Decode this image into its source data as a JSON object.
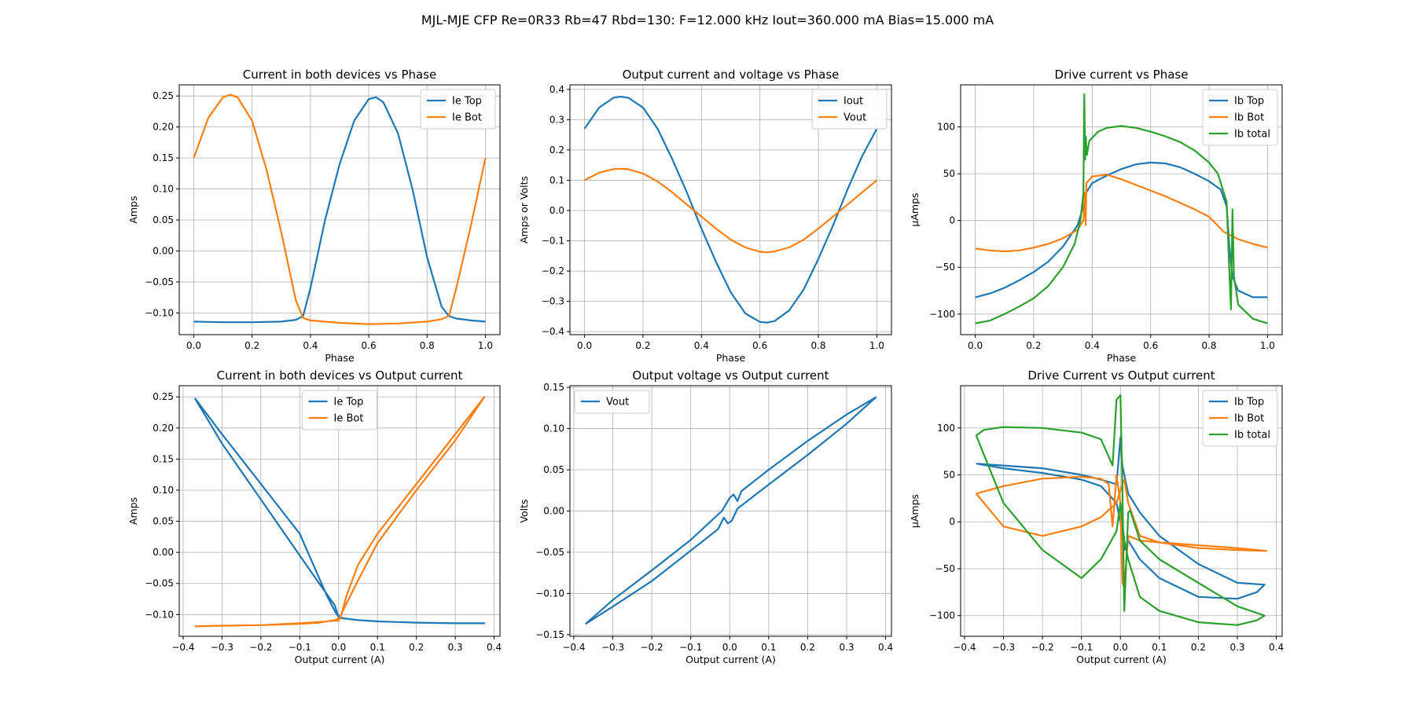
{
  "suptitle": "MJL-MJE CFP Re=0R33 Rb=47 Rbd=130: F=12.000 kHz Iout=360.000 mA Bias=15.000 mA",
  "colors": {
    "blue": "#1f77b4",
    "orange": "#ff7f0e",
    "green": "#2ca02c",
    "grid": "#b0b0b0"
  },
  "chart_data": [
    {
      "id": "ie-vs-phase",
      "type": "line",
      "title": "Current in both devices vs Phase",
      "xlabel": "Phase",
      "ylabel": "Amps",
      "xlim": [
        -0.05,
        1.05
      ],
      "ylim": [
        -0.135,
        0.268
      ],
      "xticks": [
        0,
        0.2,
        0.4,
        0.6,
        0.8,
        1.0
      ],
      "xtick_labels": [
        "0.0",
        "0.2",
        "0.4",
        "0.6",
        "0.8",
        "1.0"
      ],
      "yticks": [
        -0.1,
        -0.05,
        0.0,
        0.05,
        0.1,
        0.15,
        0.2,
        0.25
      ],
      "ytick_labels": [
        "−0.10",
        "−0.05",
        "0.00",
        "0.05",
        "0.10",
        "0.15",
        "0.20",
        "0.25"
      ],
      "grid": true,
      "legend": "top-right",
      "series": [
        {
          "name": "Ie Top",
          "color": "#1f77b4",
          "x": [
            0.0,
            0.1,
            0.2,
            0.3,
            0.35,
            0.375,
            0.4,
            0.45,
            0.5,
            0.55,
            0.6,
            0.625,
            0.65,
            0.7,
            0.75,
            0.8,
            0.85,
            0.875,
            0.9,
            0.95,
            1.0
          ],
          "y": [
            -0.114,
            -0.115,
            -0.115,
            -0.114,
            -0.111,
            -0.105,
            -0.06,
            0.05,
            0.14,
            0.21,
            0.245,
            0.248,
            0.24,
            0.19,
            0.1,
            -0.01,
            -0.09,
            -0.105,
            -0.109,
            -0.112,
            -0.114
          ]
        },
        {
          "name": "Ie Bot",
          "color": "#ff7f0e",
          "x": [
            0.0,
            0.05,
            0.1,
            0.125,
            0.15,
            0.2,
            0.25,
            0.3,
            0.35,
            0.375,
            0.4,
            0.5,
            0.6,
            0.7,
            0.8,
            0.85,
            0.875,
            0.9,
            0.95,
            1.0
          ],
          "y": [
            0.15,
            0.215,
            0.248,
            0.252,
            0.248,
            0.21,
            0.13,
            0.03,
            -0.08,
            -0.108,
            -0.112,
            -0.116,
            -0.118,
            -0.117,
            -0.114,
            -0.11,
            -0.105,
            -0.06,
            0.04,
            0.15
          ]
        }
      ]
    },
    {
      "id": "iout-vout-vs-phase",
      "type": "line",
      "title": "Output current and voltage vs Phase",
      "xlabel": "Phase",
      "ylabel": "Amps or Volts",
      "xlim": [
        -0.05,
        1.05
      ],
      "ylim": [
        -0.41,
        0.415
      ],
      "xticks": [
        0,
        0.2,
        0.4,
        0.6,
        0.8,
        1.0
      ],
      "xtick_labels": [
        "0.0",
        "0.2",
        "0.4",
        "0.6",
        "0.8",
        "1.0"
      ],
      "yticks": [
        -0.4,
        -0.3,
        -0.2,
        -0.1,
        0.0,
        0.1,
        0.2,
        0.3,
        0.4
      ],
      "ytick_labels": [
        "−0.4",
        "−0.3",
        "−0.2",
        "−0.1",
        "0.0",
        "0.1",
        "0.2",
        "0.3",
        "0.4"
      ],
      "grid": true,
      "legend": "top-right",
      "series": [
        {
          "name": "Iout",
          "color": "#1f77b4",
          "x": [
            0.0,
            0.05,
            0.1,
            0.125,
            0.15,
            0.2,
            0.25,
            0.3,
            0.35,
            0.4,
            0.45,
            0.5,
            0.55,
            0.6,
            0.625,
            0.65,
            0.7,
            0.75,
            0.8,
            0.85,
            0.9,
            0.95,
            1.0
          ],
          "y": [
            0.27,
            0.34,
            0.373,
            0.376,
            0.372,
            0.34,
            0.27,
            0.17,
            0.06,
            -0.06,
            -0.17,
            -0.27,
            -0.34,
            -0.368,
            -0.37,
            -0.365,
            -0.33,
            -0.26,
            -0.16,
            -0.05,
            0.07,
            0.18,
            0.27
          ]
        },
        {
          "name": "Vout",
          "color": "#ff7f0e",
          "x": [
            0.0,
            0.05,
            0.1,
            0.125,
            0.15,
            0.2,
            0.25,
            0.3,
            0.35,
            0.4,
            0.45,
            0.5,
            0.55,
            0.6,
            0.625,
            0.65,
            0.7,
            0.75,
            0.8,
            0.85,
            0.9,
            0.95,
            1.0
          ],
          "y": [
            0.1,
            0.125,
            0.137,
            0.138,
            0.136,
            0.122,
            0.096,
            0.06,
            0.02,
            -0.02,
            -0.06,
            -0.096,
            -0.122,
            -0.136,
            -0.138,
            -0.135,
            -0.122,
            -0.096,
            -0.06,
            -0.02,
            0.02,
            0.06,
            0.1
          ]
        }
      ]
    },
    {
      "id": "ib-vs-phase",
      "type": "line",
      "title": "Drive current vs Phase",
      "xlabel": "Phase",
      "ylabel": "µAmps",
      "xlim": [
        -0.05,
        1.05
      ],
      "ylim": [
        -122,
        145
      ],
      "xticks": [
        0,
        0.2,
        0.4,
        0.6,
        0.8,
        1.0
      ],
      "xtick_labels": [
        "0.0",
        "0.2",
        "0.4",
        "0.6",
        "0.8",
        "1.0"
      ],
      "yticks": [
        -100,
        -50,
        0,
        50,
        100
      ],
      "ytick_labels": [
        "−100",
        "−50",
        "0",
        "50",
        "100"
      ],
      "grid": true,
      "legend": "top-right",
      "series": [
        {
          "name": "Ib Top",
          "color": "#1f77b4",
          "x": [
            0.0,
            0.05,
            0.1,
            0.15,
            0.2,
            0.25,
            0.3,
            0.35,
            0.37,
            0.38,
            0.4,
            0.45,
            0.5,
            0.55,
            0.6,
            0.65,
            0.7,
            0.75,
            0.8,
            0.84,
            0.86,
            0.87,
            0.88,
            0.9,
            0.95,
            1.0
          ],
          "y": [
            -82,
            -78,
            -72,
            -64,
            -55,
            -44,
            -28,
            -5,
            15,
            30,
            40,
            48,
            55,
            60,
            62,
            61,
            57,
            50,
            42,
            33,
            15,
            -30,
            -60,
            -75,
            -82,
            -82
          ]
        },
        {
          "name": "Ib Bot",
          "color": "#ff7f0e",
          "x": [
            0.0,
            0.05,
            0.1,
            0.15,
            0.2,
            0.25,
            0.3,
            0.35,
            0.37,
            0.375,
            0.378,
            0.38,
            0.4,
            0.45,
            0.5,
            0.55,
            0.6,
            0.65,
            0.7,
            0.75,
            0.8,
            0.85,
            0.9,
            0.95,
            1.0
          ],
          "y": [
            -30,
            -32,
            -33,
            -32,
            -29,
            -25,
            -19,
            -10,
            0,
            30,
            -5,
            40,
            47,
            49,
            44,
            38,
            32,
            26,
            19,
            12,
            4,
            -12,
            -20,
            -25,
            -29
          ]
        },
        {
          "name": "Ib total",
          "color": "#2ca02c",
          "x": [
            0.0,
            0.05,
            0.1,
            0.15,
            0.2,
            0.25,
            0.3,
            0.34,
            0.36,
            0.37,
            0.373,
            0.376,
            0.378,
            0.382,
            0.39,
            0.42,
            0.45,
            0.5,
            0.55,
            0.6,
            0.65,
            0.7,
            0.75,
            0.8,
            0.83,
            0.86,
            0.87,
            0.875,
            0.88,
            0.885,
            0.9,
            0.95,
            1.0
          ],
          "y": [
            -110,
            -107,
            -100,
            -92,
            -83,
            -70,
            -50,
            -25,
            0,
            30,
            135,
            65,
            90,
            70,
            85,
            95,
            99,
            101,
            99,
            95,
            90,
            84,
            75,
            62,
            50,
            20,
            -60,
            -95,
            12,
            -60,
            -90,
            -105,
            -110
          ]
        }
      ]
    },
    {
      "id": "ie-vs-iout",
      "type": "line",
      "title": "Current in both devices vs Output current",
      "xlabel": "Output current (A)",
      "ylabel": "Amps",
      "xlim": [
        -0.41,
        0.415
      ],
      "ylim": [
        -0.135,
        0.268
      ],
      "xticks": [
        -0.4,
        -0.3,
        -0.2,
        -0.1,
        0.0,
        0.1,
        0.2,
        0.3,
        0.4
      ],
      "xtick_labels": [
        "−0.4",
        "−0.3",
        "−0.2",
        "−0.1",
        "0.0",
        "0.1",
        "0.2",
        "0.3",
        "0.4"
      ],
      "yticks": [
        -0.1,
        -0.05,
        0.0,
        0.05,
        0.1,
        0.15,
        0.2,
        0.25
      ],
      "ytick_labels": [
        "−0.10",
        "−0.05",
        "0.00",
        "0.05",
        "0.10",
        "0.15",
        "0.20",
        "0.25"
      ],
      "grid": true,
      "legend": "top-center",
      "series": [
        {
          "name": "Ie Top",
          "color": "#1f77b4",
          "x": [
            -0.37,
            -0.3,
            -0.2,
            -0.1,
            -0.03,
            -0.005,
            0.01,
            0.05,
            0.1,
            0.2,
            0.3,
            0.375,
            0.3,
            0.2,
            0.1,
            0.05,
            0.01,
            0.0,
            -0.01,
            -0.05,
            -0.1,
            -0.2,
            -0.3,
            -0.37
          ],
          "y": [
            0.248,
            0.19,
            0.11,
            0.03,
            -0.07,
            -0.1,
            -0.106,
            -0.109,
            -0.111,
            -0.113,
            -0.114,
            -0.114,
            -0.114,
            -0.113,
            -0.111,
            -0.109,
            -0.106,
            -0.105,
            -0.085,
            -0.05,
            -0.005,
            0.085,
            0.175,
            0.248
          ]
        },
        {
          "name": "Ie Bot",
          "color": "#ff7f0e",
          "x": [
            -0.37,
            -0.3,
            -0.2,
            -0.1,
            -0.05,
            -0.01,
            0.0,
            0.01,
            0.05,
            0.1,
            0.2,
            0.3,
            0.375,
            0.3,
            0.2,
            0.1,
            0.05,
            0.02,
            0.005,
            -0.01,
            -0.05,
            -0.1,
            -0.2,
            -0.3,
            -0.37
          ],
          "y": [
            -0.119,
            -0.118,
            -0.117,
            -0.114,
            -0.112,
            -0.11,
            -0.11,
            -0.095,
            -0.045,
            0.015,
            0.1,
            0.18,
            0.25,
            0.19,
            0.11,
            0.03,
            -0.02,
            -0.07,
            -0.105,
            -0.109,
            -0.113,
            -0.115,
            -0.117,
            -0.118,
            -0.119
          ]
        }
      ]
    },
    {
      "id": "vout-vs-iout",
      "type": "line",
      "title": "Output voltage vs Output current",
      "xlabel": "Output current (A)",
      "ylabel": "Volts",
      "xlim": [
        -0.41,
        0.415
      ],
      "ylim": [
        -0.152,
        0.152
      ],
      "xticks": [
        -0.4,
        -0.3,
        -0.2,
        -0.1,
        0.0,
        0.1,
        0.2,
        0.3,
        0.4
      ],
      "xtick_labels": [
        "−0.4",
        "−0.3",
        "−0.2",
        "−0.1",
        "0.0",
        "0.1",
        "0.2",
        "0.3",
        "0.4"
      ],
      "yticks": [
        -0.15,
        -0.1,
        -0.05,
        0.0,
        0.05,
        0.1,
        0.15
      ],
      "ytick_labels": [
        "−0.15",
        "−0.10",
        "−0.05",
        "0.00",
        "0.05",
        "0.10",
        "0.15"
      ],
      "grid": true,
      "legend": "top-left",
      "series": [
        {
          "name": "Vout",
          "color": "#1f77b4",
          "x": [
            -0.37,
            -0.3,
            -0.2,
            -0.1,
            -0.03,
            -0.015,
            -0.005,
            0.005,
            0.02,
            0.1,
            0.2,
            0.3,
            0.375,
            0.3,
            0.2,
            0.1,
            0.03,
            0.02,
            0.01,
            0.0,
            -0.02,
            -0.1,
            -0.2,
            -0.3,
            -0.37
          ],
          "y": [
            -0.137,
            -0.116,
            -0.085,
            -0.048,
            -0.022,
            -0.008,
            -0.015,
            -0.012,
            0.003,
            0.032,
            0.068,
            0.106,
            0.138,
            0.117,
            0.085,
            0.05,
            0.024,
            0.012,
            0.02,
            0.016,
            0.0,
            -0.035,
            -0.072,
            -0.108,
            -0.137
          ]
        }
      ]
    },
    {
      "id": "ib-vs-iout",
      "type": "line",
      "title": "Drive Current vs Output current",
      "xlabel": "Output current (A)",
      "ylabel": "µAmps",
      "xlim": [
        -0.41,
        0.415
      ],
      "ylim": [
        -122,
        145
      ],
      "xticks": [
        -0.4,
        -0.3,
        -0.2,
        -0.1,
        0.0,
        0.1,
        0.2,
        0.3,
        0.4
      ],
      "xtick_labels": [
        "−0.4",
        "−0.3",
        "−0.2",
        "−0.1",
        "0.0",
        "0.1",
        "0.2",
        "0.3",
        "0.4"
      ],
      "yticks": [
        -100,
        -50,
        0,
        50,
        100
      ],
      "ytick_labels": [
        "−100",
        "−50",
        "0",
        "50",
        "100"
      ],
      "grid": true,
      "legend": "top-right",
      "series": [
        {
          "name": "Ib Top",
          "color": "#1f77b4",
          "x": [
            -0.37,
            -0.3,
            -0.2,
            -0.1,
            -0.05,
            -0.01,
            0.0,
            0.005,
            0.02,
            0.05,
            0.1,
            0.2,
            0.3,
            0.37,
            0.35,
            0.3,
            0.2,
            0.1,
            0.05,
            0.02,
            0.01,
            0.005,
            -0.01,
            -0.05,
            -0.1,
            -0.2,
            -0.3,
            -0.37
          ],
          "y": [
            62,
            60,
            57,
            50,
            45,
            40,
            90,
            60,
            30,
            10,
            -15,
            -45,
            -65,
            -67,
            -75,
            -82,
            -80,
            -60,
            -40,
            -20,
            -30,
            -10,
            20,
            38,
            45,
            52,
            57,
            62
          ]
        },
        {
          "name": "Ib Bot",
          "color": "#ff7f0e",
          "x": [
            -0.37,
            -0.3,
            -0.2,
            -0.1,
            -0.05,
            -0.03,
            -0.02,
            -0.01,
            0.0,
            0.005,
            0.01,
            0.02,
            0.05,
            0.1,
            0.2,
            0.3,
            0.375,
            0.3,
            0.2,
            0.1,
            0.05,
            0.02,
            0.01,
            0.005,
            -0.01,
            -0.05,
            -0.1,
            -0.2,
            -0.3,
            -0.37
          ],
          "y": [
            30,
            38,
            46,
            48,
            46,
            40,
            -5,
            50,
            20,
            -65,
            -70,
            -15,
            -20,
            -22,
            -25,
            -28,
            -31,
            -30,
            -28,
            -22,
            -15,
            20,
            45,
            40,
            20,
            5,
            -5,
            -15,
            -5,
            30
          ]
        },
        {
          "name": "Ib total",
          "color": "#2ca02c",
          "x": [
            -0.37,
            -0.35,
            -0.3,
            -0.2,
            -0.1,
            -0.05,
            -0.02,
            -0.01,
            0.0,
            0.005,
            0.01,
            0.02,
            0.025,
            0.05,
            0.1,
            0.2,
            0.3,
            0.37,
            0.35,
            0.3,
            0.2,
            0.1,
            0.05,
            0.02,
            0.01,
            0.0,
            -0.01,
            -0.05,
            -0.1,
            -0.2,
            -0.3,
            -0.37
          ],
          "y": [
            92,
            98,
            101,
            100,
            95,
            88,
            60,
            130,
            135,
            40,
            -95,
            10,
            12,
            -20,
            -40,
            -65,
            -90,
            -100,
            -105,
            -110,
            -107,
            -95,
            -80,
            -40,
            -20,
            20,
            -10,
            -40,
            -60,
            -30,
            20,
            92
          ]
        }
      ]
    }
  ]
}
